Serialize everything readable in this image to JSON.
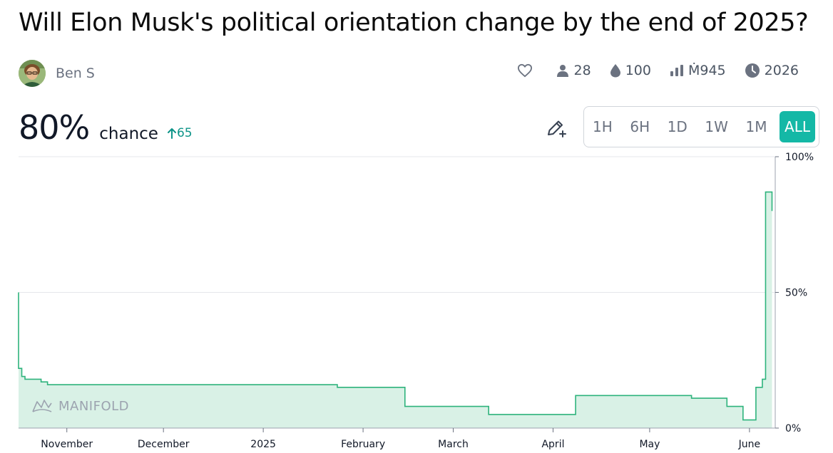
{
  "question": {
    "title": "Will Elon Musk's political orientation change by the end of 2025?"
  },
  "author": {
    "name": "Ben S"
  },
  "stats": {
    "traders": "28",
    "liquidity": "100",
    "volume": "Ṁ945",
    "close_year": "2026"
  },
  "probability": {
    "value": "80%",
    "label": "chance",
    "change": "65"
  },
  "time_ranges": [
    {
      "label": "1H",
      "active": false
    },
    {
      "label": "6H",
      "active": false
    },
    {
      "label": "1D",
      "active": false
    },
    {
      "label": "1W",
      "active": false
    },
    {
      "label": "1M",
      "active": false
    },
    {
      "label": "ALL",
      "active": true
    }
  ],
  "watermark": "MANIFOLD",
  "colors": {
    "line": "#2eb37c",
    "fill": "#d9f1e6",
    "accent": "#14b8a6",
    "up": "#0d9488"
  },
  "chart_data": {
    "type": "line",
    "step": true,
    "y_unit": "percent",
    "ylim": [
      0,
      100
    ],
    "y_ticks": [
      {
        "value": 0,
        "label": "0%"
      },
      {
        "value": 50,
        "label": "50%"
      },
      {
        "value": 100,
        "label": "100%"
      }
    ],
    "xlim": [
      "2024-10-17",
      "2025-06-09"
    ],
    "x_ticks": [
      {
        "date": "2024-11-01",
        "label": "November"
      },
      {
        "date": "2024-12-01",
        "label": "December"
      },
      {
        "date": "2025-01-01",
        "label": "2025"
      },
      {
        "date": "2025-02-01",
        "label": "February"
      },
      {
        "date": "2025-03-01",
        "label": "March"
      },
      {
        "date": "2025-04-01",
        "label": "April"
      },
      {
        "date": "2025-05-01",
        "label": "May"
      },
      {
        "date": "2025-06-01",
        "label": "June"
      }
    ],
    "gridlines": [
      50,
      100
    ],
    "series": [
      {
        "points": [
          [
            "2024-10-17",
            50
          ],
          [
            "2024-10-17",
            22
          ],
          [
            "2024-10-18",
            19
          ],
          [
            "2024-10-19",
            18
          ],
          [
            "2024-10-24",
            17
          ],
          [
            "2024-10-26",
            16
          ],
          [
            "2025-01-24",
            15
          ],
          [
            "2025-02-03",
            15
          ],
          [
            "2025-02-14",
            8
          ],
          [
            "2025-03-12",
            5
          ],
          [
            "2025-04-08",
            12
          ],
          [
            "2025-05-14",
            11
          ],
          [
            "2025-05-25",
            8
          ],
          [
            "2025-05-30",
            3
          ],
          [
            "2025-06-03",
            15
          ],
          [
            "2025-06-05",
            18
          ],
          [
            "2025-06-06",
            87
          ],
          [
            "2025-06-08",
            80
          ]
        ]
      }
    ]
  }
}
